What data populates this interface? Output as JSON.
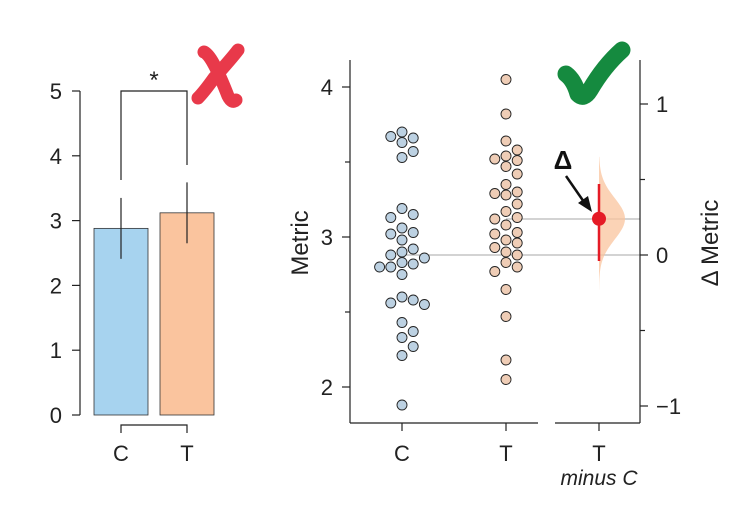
{
  "chart_data": [
    {
      "type": "bar",
      "categories": [
        "C",
        "T"
      ],
      "values": [
        2.88,
        3.12
      ],
      "error": [
        0.47,
        0.47
      ],
      "colors": [
        "#a7d3ef",
        "#fac49e"
      ],
      "yticks": [
        "0",
        "1",
        "2",
        "3",
        "4",
        "5"
      ],
      "ylim": [
        0,
        5
      ],
      "significance": "*",
      "verdict_icon": "red-cross-icon",
      "verdict_color": "#e8394a"
    },
    {
      "type": "scatter",
      "categories": [
        "C",
        "T"
      ],
      "series": [
        {
          "values": [
            3.7,
            3.66,
            3.63,
            3.67,
            3.57,
            3.53,
            3.19,
            3.15,
            3.13,
            3.06,
            3.03,
            3.02,
            2.98,
            2.92,
            2.9,
            2.88,
            2.86,
            2.83,
            2.82,
            2.8,
            2.8,
            2.75,
            2.6,
            2.58,
            2.56,
            2.55,
            2.43,
            2.37,
            2.33,
            2.27,
            2.21,
            1.88
          ],
          "color": "#bcd1e2"
        },
        {
          "values": [
            4.05,
            3.82,
            3.64,
            3.58,
            3.54,
            3.52,
            3.51,
            3.47,
            3.42,
            3.35,
            3.3,
            3.29,
            3.28,
            3.22,
            3.17,
            3.13,
            3.12,
            3.08,
            3.03,
            3.02,
            2.98,
            2.96,
            2.93,
            2.9,
            2.88,
            2.83,
            2.8,
            2.77,
            2.65,
            2.47,
            2.18,
            2.05
          ],
          "color": "#efcdb6"
        }
      ],
      "yticks": [
        "2",
        "3",
        "4"
      ],
      "ylim": [
        1.75,
        4.2
      ],
      "ylabel": "Metric",
      "mean_lines": [
        2.88,
        3.12
      ],
      "verdict_icon": "green-check-icon",
      "verdict_color": "#158a3f"
    },
    {
      "type": "estimation",
      "category": "T",
      "category_sub": "minus C",
      "delta_label": "Δ",
      "ylabel": "Δ Metric",
      "yticks": [
        "−1",
        "0",
        "1"
      ],
      "ylim": [
        -1.13,
        1.27
      ],
      "effect": 0.24,
      "ci": [
        -0.04,
        0.47
      ],
      "dist_range": [
        -0.23,
        0.65
      ],
      "effect_color": "#e51b26",
      "dist_color": "#fac49e"
    }
  ]
}
